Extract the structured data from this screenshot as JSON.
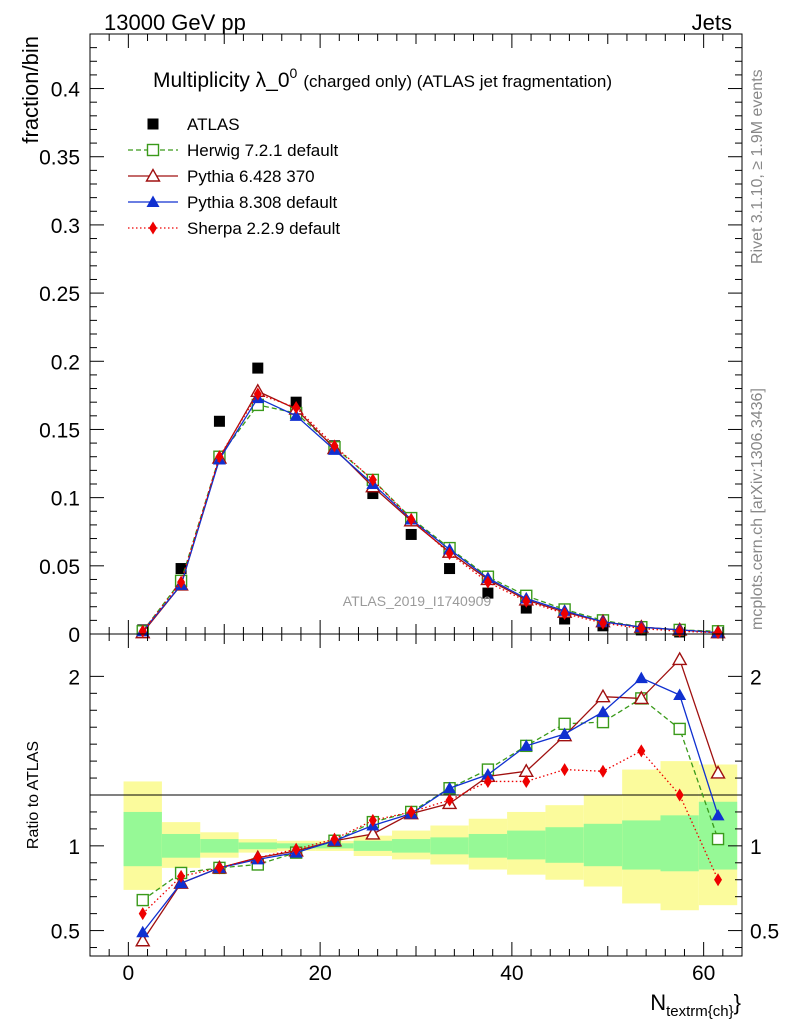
{
  "header": {
    "left": "13000 GeV pp",
    "right": "Jets"
  },
  "side_labels": {
    "rivet": "Rivet 3.1.10, ≥ 1.9M events",
    "mcplots": "mcplots.cern.ch [arXiv:1306.3436]"
  },
  "watermark": "ATLAS_2019_I1740909",
  "chart_data": {
    "type": "scatter",
    "title": "Multiplicity λ_0⁰ (charged only) (ATLAS jet fragmentation)",
    "title_main": "Multiplicity λ_0",
    "title_sup": "0",
    "title_rest": "(charged only) (ATLAS jet fragmentation)",
    "xlabel": "N",
    "xlabel_sub": "textrm{ch}",
    "xlabel_tail": "}",
    "ylabel": "fraction/bin",
    "ratio_ylabel": "Ratio to ATLAS",
    "xlim": [
      -4,
      64
    ],
    "ylim": [
      0,
      0.44
    ],
    "ratio_ylim": [
      0.35,
      2.25
    ],
    "x_ticks": [
      0,
      20,
      40,
      60
    ],
    "y_ticks": [
      0,
      0.05,
      0.1,
      0.15,
      0.2,
      0.25,
      0.3,
      0.35,
      0.4
    ],
    "y_tick_labels": [
      "0",
      "0.05",
      "0.1",
      "0.15",
      "0.2",
      "0.25",
      "0.3",
      "0.35",
      "0.4"
    ],
    "ratio_ticks": [
      0.5,
      1,
      2
    ],
    "ratio_tick_labels": [
      "0.5",
      "1",
      "2"
    ],
    "legend_position": "top-left",
    "x": [
      1.5,
      5.5,
      9.5,
      13.5,
      17.5,
      21.5,
      25.5,
      29.5,
      33.5,
      37.5,
      41.5,
      45.5,
      49.5,
      53.5,
      57.5,
      61.5
    ],
    "bin_edges": [
      -0.5,
      3.5,
      7.5,
      11.5,
      15.5,
      19.5,
      23.5,
      27.5,
      31.5,
      35.5,
      39.5,
      43.5,
      47.5,
      51.5,
      55.5,
      59.5,
      63.5
    ],
    "band_inner": [
      [
        0.88,
        1.2
      ],
      [
        0.93,
        1.07
      ],
      [
        0.96,
        1.04
      ],
      [
        0.98,
        1.02
      ],
      [
        0.985,
        1.015
      ],
      [
        0.985,
        1.015
      ],
      [
        0.97,
        1.03
      ],
      [
        0.96,
        1.04
      ],
      [
        0.95,
        1.05
      ],
      [
        0.93,
        1.07
      ],
      [
        0.92,
        1.09
      ],
      [
        0.9,
        1.11
      ],
      [
        0.88,
        1.13
      ],
      [
        0.86,
        1.15
      ],
      [
        0.85,
        1.18
      ],
      [
        0.86,
        1.26
      ]
    ],
    "band_outer": [
      [
        0.74,
        1.38
      ],
      [
        0.87,
        1.14
      ],
      [
        0.93,
        1.08
      ],
      [
        0.96,
        1.04
      ],
      [
        0.97,
        1.03
      ],
      [
        0.97,
        1.03
      ],
      [
        0.94,
        1.06
      ],
      [
        0.92,
        1.09
      ],
      [
        0.89,
        1.12
      ],
      [
        0.86,
        1.16
      ],
      [
        0.83,
        1.2
      ],
      [
        0.8,
        1.24
      ],
      [
        0.76,
        1.3
      ],
      [
        0.66,
        1.45
      ],
      [
        0.62,
        1.5
      ],
      [
        0.65,
        1.48
      ]
    ],
    "series": [
      {
        "name": "ATLAS",
        "color": "#000000",
        "marker": "square-filled",
        "line": "none",
        "values": [
          0.003,
          0.048,
          0.156,
          0.195,
          0.17,
          0.138,
          0.103,
          0.073,
          0.048,
          0.03,
          0.019,
          0.011,
          0.006,
          0.003,
          0.0015,
          0.001
        ]
      },
      {
        "name": "Herwig 7.2.1 default",
        "color": "#3a9a1a",
        "marker": "square-open",
        "line": "dashed",
        "values": [
          0.002,
          0.039,
          0.13,
          0.168,
          0.162,
          0.137,
          0.113,
          0.085,
          0.063,
          0.042,
          0.028,
          0.018,
          0.01,
          0.005,
          0.003,
          0.002
        ],
        "ratio": [
          0.68,
          0.84,
          0.87,
          0.89,
          0.96,
          1.03,
          1.14,
          1.2,
          1.34,
          1.45,
          1.59,
          1.72,
          1.73,
          1.87,
          1.69,
          1.04
        ]
      },
      {
        "name": "Pythia 6.428 370",
        "color": "#a01010",
        "marker": "triangle-open",
        "line": "solid",
        "values": [
          0.001,
          0.036,
          0.129,
          0.178,
          0.165,
          0.136,
          0.108,
          0.083,
          0.06,
          0.04,
          0.025,
          0.016,
          0.009,
          0.005,
          0.003,
          0.001
        ],
        "ratio": [
          0.44,
          0.78,
          0.87,
          0.93,
          0.97,
          1.03,
          1.07,
          1.19,
          1.25,
          1.41,
          1.44,
          1.65,
          1.88,
          1.87,
          2.1,
          1.43
        ]
      },
      {
        "name": "Pythia 8.308 default",
        "color": "#1030d0",
        "marker": "triangle-filled",
        "line": "solid",
        "values": [
          0.002,
          0.036,
          0.128,
          0.173,
          0.16,
          0.135,
          0.11,
          0.084,
          0.062,
          0.041,
          0.026,
          0.017,
          0.009,
          0.005,
          0.003,
          0.001
        ],
        "ratio": [
          0.49,
          0.78,
          0.87,
          0.92,
          0.96,
          1.03,
          1.12,
          1.19,
          1.34,
          1.42,
          1.59,
          1.66,
          1.79,
          1.99,
          1.89,
          1.18
        ]
      },
      {
        "name": "Sherpa 2.2.9 default",
        "color": "#ee0000",
        "marker": "diamond-filled",
        "line": "dotted",
        "values": [
          0.002,
          0.038,
          0.13,
          0.176,
          0.166,
          0.138,
          0.113,
          0.084,
          0.059,
          0.038,
          0.024,
          0.015,
          0.008,
          0.004,
          0.002,
          0.001
        ],
        "ratio": [
          0.6,
          0.82,
          0.87,
          0.93,
          0.98,
          1.04,
          1.15,
          1.2,
          1.27,
          1.38,
          1.38,
          1.45,
          1.44,
          1.56,
          1.3,
          0.8
        ]
      }
    ]
  }
}
